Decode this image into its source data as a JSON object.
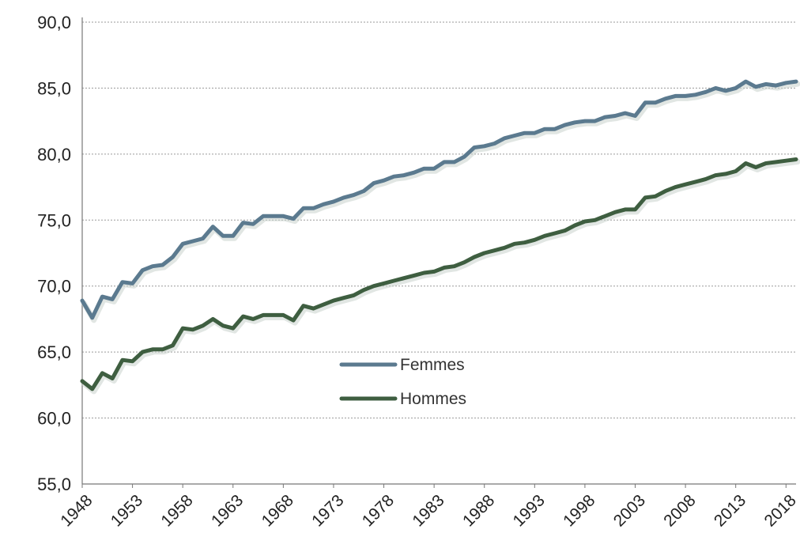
{
  "chart_data": {
    "type": "line",
    "title": "",
    "xlabel": "",
    "ylabel": "",
    "ylim": [
      55,
      90
    ],
    "xlim": [
      1948,
      2019
    ],
    "y_ticks": [
      55,
      60,
      65,
      70,
      75,
      80,
      85,
      90
    ],
    "y_tick_labels": [
      "55,0",
      "60,0",
      "65,0",
      "70,0",
      "75,0",
      "80,0",
      "85,0",
      "90,0"
    ],
    "x_ticks": [
      1948,
      1953,
      1958,
      1963,
      1968,
      1973,
      1978,
      1983,
      1988,
      1993,
      1998,
      2003,
      2008,
      2013,
      2018
    ],
    "x_tick_labels": [
      "1948",
      "1953",
      "1958",
      "1963",
      "1968",
      "1973",
      "1978",
      "1983",
      "1988",
      "1993",
      "1998",
      "2003",
      "2008",
      "2013",
      "2018"
    ],
    "grid": "horizontal",
    "legend_position": "center-left",
    "x": [
      1948,
      1949,
      1950,
      1951,
      1952,
      1953,
      1954,
      1955,
      1956,
      1957,
      1958,
      1959,
      1960,
      1961,
      1962,
      1963,
      1964,
      1965,
      1966,
      1967,
      1968,
      1969,
      1970,
      1971,
      1972,
      1973,
      1974,
      1975,
      1976,
      1977,
      1978,
      1979,
      1980,
      1981,
      1982,
      1983,
      1984,
      1985,
      1986,
      1987,
      1988,
      1989,
      1990,
      1991,
      1992,
      1993,
      1994,
      1995,
      1996,
      1997,
      1998,
      1999,
      2000,
      2001,
      2002,
      2003,
      2004,
      2005,
      2006,
      2007,
      2008,
      2009,
      2010,
      2011,
      2012,
      2013,
      2014,
      2015,
      2016,
      2017,
      2018,
      2019
    ],
    "series": [
      {
        "name": "Femmes",
        "color": "#5b7a8f",
        "values": [
          68.9,
          67.6,
          69.2,
          69.0,
          70.3,
          70.2,
          71.2,
          71.5,
          71.6,
          72.2,
          73.2,
          73.4,
          73.6,
          74.5,
          73.8,
          73.8,
          74.8,
          74.7,
          75.3,
          75.3,
          75.3,
          75.1,
          75.9,
          75.9,
          76.2,
          76.4,
          76.7,
          76.9,
          77.2,
          77.8,
          78.0,
          78.3,
          78.4,
          78.6,
          78.9,
          78.9,
          79.4,
          79.4,
          79.8,
          80.5,
          80.6,
          80.8,
          81.2,
          81.4,
          81.6,
          81.6,
          81.9,
          81.9,
          82.2,
          82.4,
          82.5,
          82.5,
          82.8,
          82.9,
          83.1,
          82.9,
          83.9,
          83.9,
          84.2,
          84.4,
          84.4,
          84.5,
          84.7,
          85.0,
          84.8,
          85.0,
          85.5,
          85.1,
          85.3,
          85.2,
          85.4,
          85.5
        ]
      },
      {
        "name": "Hommes",
        "color": "#3e5e40",
        "values": [
          62.8,
          62.2,
          63.4,
          63.0,
          64.4,
          64.3,
          65.0,
          65.2,
          65.2,
          65.5,
          66.8,
          66.7,
          67.0,
          67.5,
          67.0,
          66.8,
          67.7,
          67.5,
          67.8,
          67.8,
          67.8,
          67.4,
          68.5,
          68.3,
          68.6,
          68.9,
          69.1,
          69.3,
          69.7,
          70.0,
          70.2,
          70.4,
          70.6,
          70.8,
          71.0,
          71.1,
          71.4,
          71.5,
          71.8,
          72.2,
          72.5,
          72.7,
          72.9,
          73.2,
          73.3,
          73.5,
          73.8,
          74.0,
          74.2,
          74.6,
          74.9,
          75.0,
          75.3,
          75.6,
          75.8,
          75.8,
          76.7,
          76.8,
          77.2,
          77.5,
          77.7,
          77.9,
          78.1,
          78.4,
          78.5,
          78.7,
          79.3,
          79.0,
          79.3,
          79.4,
          79.5,
          79.6
        ]
      }
    ]
  }
}
